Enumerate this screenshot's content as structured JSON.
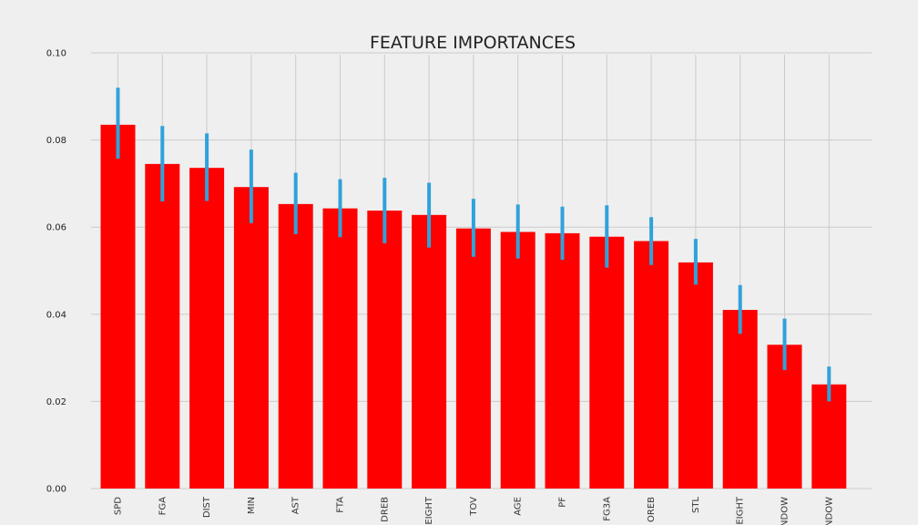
{
  "chart_data": {
    "type": "bar",
    "title": "FEATURE IMPORTANCES",
    "xlabel": "",
    "ylabel": "",
    "categories": [
      "SPD",
      "FGA",
      "DIST",
      "MIN",
      "AST",
      "FTA",
      "DREB",
      "EIGHT",
      "TOV",
      "AGE",
      "PF",
      "FG3A",
      "OREB",
      "STL",
      "EIGHT",
      "NDOW",
      "NDOW"
    ],
    "values": [
      0.0835,
      0.0745,
      0.0736,
      0.0692,
      0.0653,
      0.0643,
      0.0638,
      0.0628,
      0.0597,
      0.0589,
      0.0586,
      0.0578,
      0.0568,
      0.0519,
      0.041,
      0.033,
      0.0239
    ],
    "error_low": [
      0.0757,
      0.0659,
      0.066,
      0.0609,
      0.0584,
      0.0577,
      0.0563,
      0.0553,
      0.0532,
      0.0528,
      0.0525,
      0.0507,
      0.0513,
      0.0468,
      0.0355,
      0.0272,
      0.02
    ],
    "error_high": [
      0.092,
      0.0832,
      0.0815,
      0.0778,
      0.0725,
      0.071,
      0.0713,
      0.0702,
      0.0665,
      0.0652,
      0.0647,
      0.065,
      0.0623,
      0.0573,
      0.0467,
      0.039,
      0.028
    ],
    "ylim": [
      0,
      0.1
    ],
    "yticks": [
      "0.00",
      "0.02",
      "0.04",
      "0.06",
      "0.08",
      "0.10"
    ],
    "grid": true,
    "colors": {
      "bar": "#ff0000",
      "error": "#30a2da",
      "grid": "#cbcbcb",
      "background": "#efefef"
    }
  }
}
